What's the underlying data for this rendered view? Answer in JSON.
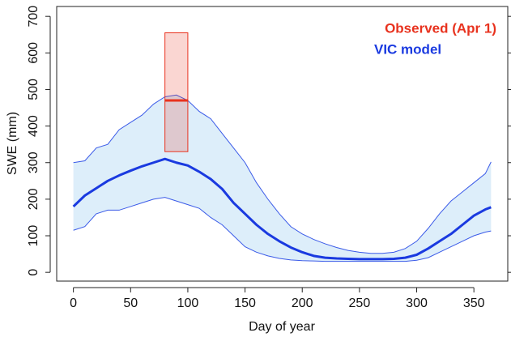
{
  "chart_data": {
    "type": "line",
    "x_label": "Day of year",
    "y_label": "SWE (mm)",
    "x": [
      0,
      10,
      20,
      30,
      40,
      50,
      60,
      70,
      80,
      90,
      100,
      110,
      120,
      130,
      140,
      150,
      160,
      170,
      180,
      190,
      200,
      210,
      220,
      230,
      240,
      250,
      260,
      270,
      280,
      290,
      300,
      310,
      320,
      330,
      340,
      350,
      360,
      365
    ],
    "series": [
      {
        "name": "VIC model",
        "color": "#1a3ae0",
        "values": [
          180,
          210,
          230,
          250,
          265,
          278,
          290,
          300,
          310,
          300,
          292,
          275,
          255,
          228,
          190,
          160,
          130,
          105,
          85,
          68,
          55,
          45,
          40,
          38,
          37,
          36,
          36,
          36,
          37,
          40,
          48,
          65,
          85,
          105,
          130,
          155,
          172,
          178
        ]
      }
    ],
    "band": {
      "color": "#ddeefa",
      "edge_color": "#3a5ae8",
      "upper": [
        300,
        305,
        340,
        350,
        390,
        410,
        430,
        460,
        480,
        485,
        470,
        440,
        420,
        380,
        340,
        300,
        245,
        200,
        160,
        125,
        105,
        90,
        78,
        68,
        60,
        55,
        52,
        52,
        55,
        65,
        85,
        120,
        160,
        195,
        220,
        245,
        270,
        302
      ],
      "lower": [
        115,
        125,
        160,
        170,
        170,
        180,
        190,
        200,
        205,
        195,
        185,
        175,
        150,
        130,
        100,
        70,
        55,
        45,
        38,
        34,
        32,
        31,
        30,
        30,
        30,
        30,
        30,
        30,
        30,
        30,
        33,
        40,
        55,
        70,
        85,
        100,
        110,
        113
      ]
    },
    "observed": {
      "name": "Observed (Apr 1)",
      "color": "#e8321e",
      "x_range": [
        80,
        100
      ],
      "low": 330,
      "high": 655,
      "value": 470
    },
    "xlim": [
      -14.6,
      379.6
    ],
    "ylim": [
      -24,
      727
    ],
    "xticks": [
      0,
      50,
      100,
      150,
      200,
      250,
      300,
      350
    ],
    "yticks": [
      0,
      100,
      200,
      300,
      400,
      500,
      600,
      700
    ]
  }
}
